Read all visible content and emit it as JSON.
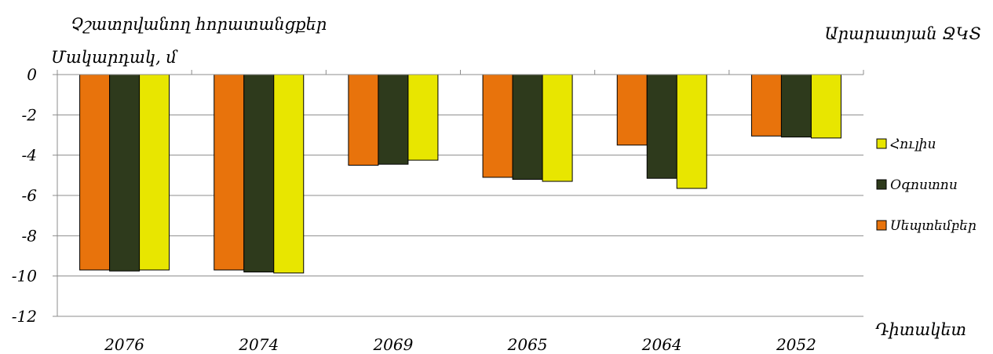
{
  "chart_data": {
    "type": "bar",
    "title": "Արարատյան ՋԿՏ",
    "subtitle": "Չշատրվանող հորատանցքեր",
    "ylabel": "Մակարդակ, մ",
    "xlabel": "Դիտակետ",
    "categories": [
      "2076",
      "2074",
      "2069",
      "2065",
      "2064",
      "2052"
    ],
    "ylim": [
      -12,
      0
    ],
    "yticks": [
      0,
      -2,
      -4,
      -6,
      -8,
      -10,
      -12
    ],
    "grid": true,
    "legend_position": "right",
    "series": [
      {
        "name": "Սեպտեմբեր",
        "color": "#E8730C",
        "values": [
          -9.7,
          -9.7,
          -4.5,
          -5.1,
          -3.5,
          -3.05
        ]
      },
      {
        "name": "Օգոստոս",
        "color": "#2E3A1C",
        "values": [
          -9.75,
          -9.8,
          -4.45,
          -5.2,
          -5.15,
          -3.1
        ]
      },
      {
        "name": "Հուլիս",
        "color": "#E8E600",
        "values": [
          -9.7,
          -9.85,
          -4.25,
          -5.3,
          -5.65,
          -3.15
        ]
      }
    ],
    "legend_order": [
      2,
      1,
      0
    ]
  }
}
